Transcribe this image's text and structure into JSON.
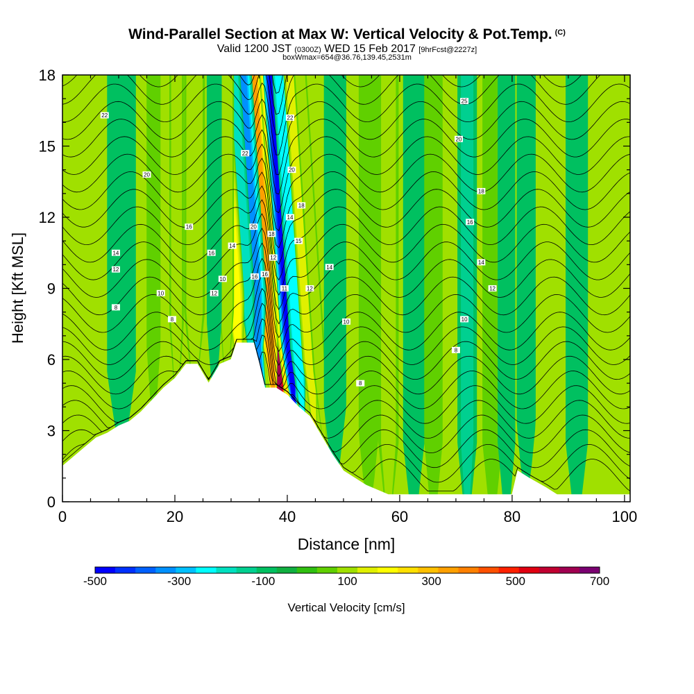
{
  "chart_data": {
    "type": "heatmap",
    "title": "Wind-Parallel Section at Max W: Vertical Velocity & Pot.Temp.",
    "title_mark": "(C)",
    "subtitle": {
      "valid_prefix": "Valid 1200 JST",
      "zulu": "(0300Z)",
      "date": "WED 15 Feb 2017",
      "forecast": "[9hrFcst@2227z]"
    },
    "box_info": "boxWmax=654@36.76,139.45,2531m",
    "xlabel": "Distance [nm]",
    "ylabel": "Height [Kft MSL]",
    "xlim": [
      0,
      101
    ],
    "ylim": [
      0,
      18
    ],
    "x_ticks": [
      0,
      20,
      40,
      60,
      80,
      100
    ],
    "y_ticks": [
      0,
      3,
      6,
      9,
      12,
      15,
      18
    ],
    "colorbar": {
      "label": "Vertical Velocity [cm/s]",
      "min": -500,
      "max": 700,
      "step": 50,
      "tick_labels": [
        "-500",
        "-300",
        "-100",
        "100",
        "300",
        "500",
        "700"
      ],
      "colors": [
        "#0000ff",
        "#0030ff",
        "#0060ff",
        "#0090ff",
        "#00c0ff",
        "#00ffff",
        "#00e0c0",
        "#00d090",
        "#00c060",
        "#10b040",
        "#30c010",
        "#60d000",
        "#a0e000",
        "#e0f000",
        "#ffff00",
        "#ffe000",
        "#ffc000",
        "#ffa000",
        "#ff8000",
        "#ff5000",
        "#ff2000",
        "#e00010",
        "#c00030",
        "#a00050",
        "#7a0070"
      ]
    },
    "terrain_kft": [
      [
        0,
        1.5
      ],
      [
        2,
        1.9
      ],
      [
        4,
        2.3
      ],
      [
        6,
        2.7
      ],
      [
        8,
        2.9
      ],
      [
        10,
        3.2
      ],
      [
        12,
        3.4
      ],
      [
        14,
        3.8
      ],
      [
        16,
        4.3
      ],
      [
        18,
        4.8
      ],
      [
        20,
        5.2
      ],
      [
        22,
        5.8
      ],
      [
        24,
        5.8
      ],
      [
        26,
        5.0
      ],
      [
        28,
        5.8
      ],
      [
        30,
        6.0
      ],
      [
        31,
        6.7
      ],
      [
        34,
        6.7
      ],
      [
        35,
        5.8
      ],
      [
        36,
        4.8
      ],
      [
        38,
        4.8
      ],
      [
        40,
        4.5
      ],
      [
        42,
        4.0
      ],
      [
        44,
        3.6
      ],
      [
        46,
        2.8
      ],
      [
        48,
        2.0
      ],
      [
        50,
        1.3
      ],
      [
        52,
        1.0
      ],
      [
        54,
        0.7
      ],
      [
        58,
        0.3
      ],
      [
        80,
        0.3
      ],
      [
        81,
        1.3
      ],
      [
        83,
        1.0
      ],
      [
        86,
        0.6
      ],
      [
        88,
        0.3
      ],
      [
        101,
        0.3
      ]
    ],
    "w_features": [
      {
        "x": 37.5,
        "w": 1.2,
        "value": 654
      },
      {
        "x": 36.3,
        "w": 0.8,
        "value": 380
      },
      {
        "x": 38.8,
        "w": 0.7,
        "value": 250
      },
      {
        "x": 39.8,
        "w": 0.9,
        "value": -470
      },
      {
        "x": 41.2,
        "w": 0.8,
        "value": -240
      },
      {
        "x": 34.2,
        "w": 1.2,
        "value": -330
      },
      {
        "x": 32.8,
        "w": 0.8,
        "value": -180
      },
      {
        "x": 30.6,
        "w": 1.0,
        "value": 230
      },
      {
        "x": 29.2,
        "w": 0.8,
        "value": 140
      },
      {
        "x": 27.0,
        "w": 0.9,
        "value": -90
      },
      {
        "x": 23.5,
        "w": 1.2,
        "value": 140
      },
      {
        "x": 20.3,
        "w": 0.8,
        "value": 120
      },
      {
        "x": 16.2,
        "w": 0.9,
        "value": 70
      },
      {
        "x": 43.2,
        "w": 0.8,
        "value": 180
      },
      {
        "x": 44.8,
        "w": 0.7,
        "value": 120
      },
      {
        "x": 48.5,
        "w": 1.5,
        "value": -80
      },
      {
        "x": 54.5,
        "w": 1.5,
        "value": 60
      },
      {
        "x": 58.0,
        "w": 1.2,
        "value": 120
      },
      {
        "x": 62.5,
        "w": 1.5,
        "value": -70
      },
      {
        "x": 66.0,
        "w": 1.5,
        "value": 50
      },
      {
        "x": 72.0,
        "w": 1.2,
        "value": -100
      },
      {
        "x": 76.5,
        "w": 1.5,
        "value": 60
      },
      {
        "x": 79.0,
        "w": 1.2,
        "value": -70
      },
      {
        "x": 82.5,
        "w": 1.2,
        "value": -90
      },
      {
        "x": 86.5,
        "w": 1.3,
        "value": 40
      },
      {
        "x": 91.5,
        "w": 1.5,
        "value": -80
      },
      {
        "x": 96.0,
        "w": 1.0,
        "value": 30
      },
      {
        "x": 5.0,
        "w": 2.5,
        "value": -40
      },
      {
        "x": 10.5,
        "w": 2.5,
        "value": -50
      }
    ],
    "theta_labels": [
      {
        "x": 7.5,
        "y": 16.3,
        "text": "22"
      },
      {
        "x": 15.0,
        "y": 13.8,
        "text": "20"
      },
      {
        "x": 9.5,
        "y": 10.5,
        "text": "14"
      },
      {
        "x": 9.5,
        "y": 9.8,
        "text": "12"
      },
      {
        "x": 9.5,
        "y": 8.2,
        "text": "8"
      },
      {
        "x": 17.5,
        "y": 8.8,
        "text": "10"
      },
      {
        "x": 19.5,
        "y": 7.7,
        "text": "8"
      },
      {
        "x": 22.5,
        "y": 11.6,
        "text": "16"
      },
      {
        "x": 26.5,
        "y": 10.5,
        "text": "16"
      },
      {
        "x": 28.5,
        "y": 9.4,
        "text": "10"
      },
      {
        "x": 27.0,
        "y": 8.8,
        "text": "12"
      },
      {
        "x": 30.2,
        "y": 10.8,
        "text": "14"
      },
      {
        "x": 32.5,
        "y": 14.7,
        "text": "22"
      },
      {
        "x": 34.0,
        "y": 11.6,
        "text": "20"
      },
      {
        "x": 34.2,
        "y": 9.5,
        "text": "16"
      },
      {
        "x": 36.0,
        "y": 9.6,
        "text": "16"
      },
      {
        "x": 37.2,
        "y": 11.3,
        "text": "18"
      },
      {
        "x": 37.5,
        "y": 10.3,
        "text": "12"
      },
      {
        "x": 39.5,
        "y": 9.0,
        "text": "11"
      },
      {
        "x": 40.5,
        "y": 12.0,
        "text": "14"
      },
      {
        "x": 40.5,
        "y": 16.2,
        "text": "22"
      },
      {
        "x": 40.8,
        "y": 14.0,
        "text": "20"
      },
      {
        "x": 42.5,
        "y": 12.5,
        "text": "18"
      },
      {
        "x": 42.0,
        "y": 11.0,
        "text": "15"
      },
      {
        "x": 44.0,
        "y": 9.0,
        "text": "12"
      },
      {
        "x": 47.5,
        "y": 9.9,
        "text": "14"
      },
      {
        "x": 50.5,
        "y": 7.6,
        "text": "10"
      },
      {
        "x": 53.0,
        "y": 5.0,
        "text": "8"
      },
      {
        "x": 70.0,
        "y": 6.4,
        "text": "8"
      },
      {
        "x": 71.5,
        "y": 7.7,
        "text": "10"
      },
      {
        "x": 76.5,
        "y": 9.0,
        "text": "12"
      },
      {
        "x": 74.5,
        "y": 10.1,
        "text": "14"
      },
      {
        "x": 72.5,
        "y": 11.8,
        "text": "16"
      },
      {
        "x": 74.5,
        "y": 13.1,
        "text": "18"
      },
      {
        "x": 70.5,
        "y": 15.3,
        "text": "20"
      },
      {
        "x": 71.5,
        "y": 16.9,
        "text": "25"
      }
    ]
  }
}
